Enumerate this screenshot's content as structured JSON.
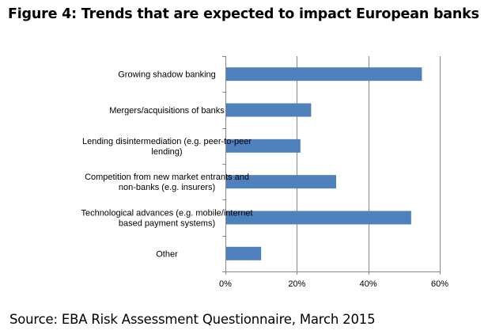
{
  "figure": {
    "title": "Figure 4: Trends that are expected to impact European banks",
    "source": "Source: EBA Risk Assessment Questionnaire, March 2015"
  },
  "chart_data": {
    "type": "bar",
    "orientation": "horizontal",
    "categories": [
      [
        "Growing shadow banking"
      ],
      [
        "Mergers/acquisitions of banks"
      ],
      [
        "Lending disintermediation (e.g. peer-to-peer",
        "lending)"
      ],
      [
        "Competition from new market entrants and",
        "non-banks (e.g. insurers)"
      ],
      [
        "Technological advances (e.g. mobile/internet",
        "based payment systems)"
      ],
      [
        "Other"
      ]
    ],
    "values": [
      55,
      24,
      21,
      31,
      52,
      10
    ],
    "unit": "%",
    "xlim": [
      0,
      60
    ],
    "xticks": [
      0,
      20,
      40,
      60
    ],
    "xtick_labels": [
      "0%",
      "20%",
      "40%",
      "60%"
    ],
    "grid": "vertical",
    "legend": "none",
    "colors": {
      "bar": "#4f81bd",
      "grid": "#868686",
      "axis": "#868686"
    }
  }
}
